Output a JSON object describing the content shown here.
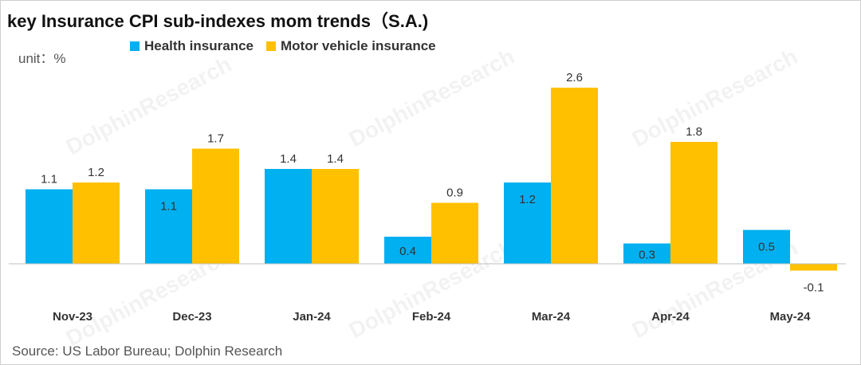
{
  "title": "key Insurance CPI sub-indexes mom trends（S.A.)",
  "unit": "unit：%",
  "source": "Source: US Labor Bureau; Dolphin Research",
  "watermark": "DolphinResearch",
  "colors": {
    "health": "#00B0F0",
    "motor": "#FFC000",
    "axis": "#bfbfbf"
  },
  "chart_data": {
    "type": "bar",
    "title": "key Insurance CPI sub-indexes mom trends（S.A.)",
    "xlabel": "",
    "ylabel": "",
    "ylim": [
      -0.3,
      2.7
    ],
    "grid": false,
    "legend": "top-left",
    "categories": [
      "Nov-23",
      "Dec-23",
      "Jan-24",
      "Feb-24",
      "Mar-24",
      "Apr-24",
      "May-24"
    ],
    "series": [
      {
        "name": "Health insurance",
        "color": "#00B0F0",
        "values": [
          1.1,
          1.1,
          1.4,
          0.4,
          1.2,
          0.3,
          0.5
        ]
      },
      {
        "name": "Motor vehicle insurance",
        "color": "#FFC000",
        "values": [
          1.2,
          1.7,
          1.4,
          0.9,
          2.6,
          1.8,
          -0.1
        ]
      }
    ]
  }
}
